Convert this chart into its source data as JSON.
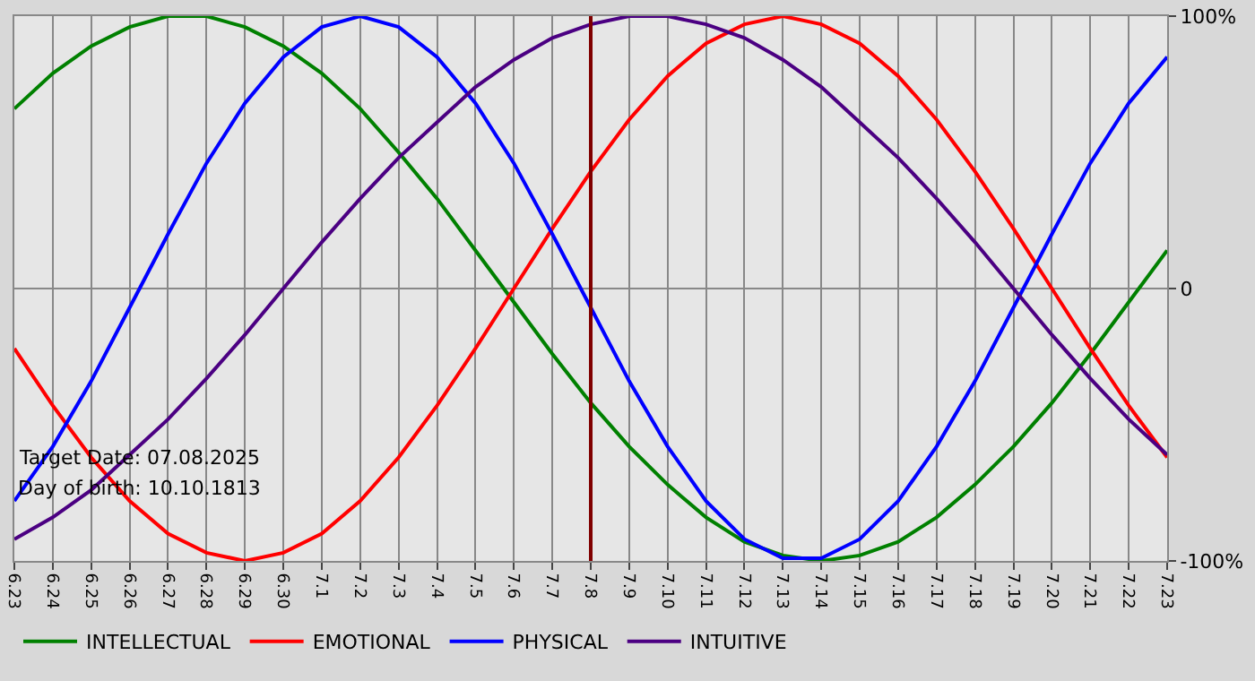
{
  "chart_data": {
    "type": "line",
    "categories": [
      "6.23",
      "6.24",
      "6.25",
      "6.26",
      "6.27",
      "6.28",
      "6.29",
      "6.30",
      "7.1",
      "7.2",
      "7.3",
      "7.4",
      "7.5",
      "7.6",
      "7.7",
      "7.8",
      "7.9",
      "7.10",
      "7.11",
      "7.12",
      "7.13",
      "7.14",
      "7.15",
      "7.16",
      "7.17",
      "7.18",
      "7.19",
      "7.20",
      "7.21",
      "7.22",
      "7.23"
    ],
    "series": [
      {
        "name": "INTELLECTUAL",
        "color": "#008000",
        "values": [
          66,
          79,
          89,
          96,
          100,
          100,
          96,
          89,
          79,
          66,
          50,
          33,
          14,
          -5,
          -24,
          -42,
          -58,
          -72,
          -84,
          -93,
          -98,
          -100,
          -98,
          -93,
          -84,
          -72,
          -58,
          -42,
          -24,
          -5,
          14
        ]
      },
      {
        "name": "EMOTIONAL",
        "color": "#ff0000",
        "values": [
          -22,
          -43,
          -62,
          -78,
          -90,
          -97,
          -100,
          -97,
          -90,
          -78,
          -62,
          -43,
          -22,
          0,
          22,
          43,
          62,
          78,
          90,
          97,
          100,
          97,
          90,
          78,
          62,
          43,
          22,
          0,
          -22,
          -43,
          -62
        ]
      },
      {
        "name": "PHYSICAL",
        "color": "#0000ff",
        "values": [
          -78,
          -58,
          -34,
          -7,
          20,
          46,
          68,
          85,
          96,
          100,
          96,
          85,
          68,
          46,
          20,
          -7,
          -34,
          -58,
          -78,
          -92,
          -99,
          -99,
          -92,
          -78,
          -58,
          -34,
          -7,
          20,
          46,
          68,
          85
        ]
      },
      {
        "name": "INTUITIVE",
        "color": "#4b0082",
        "values": [
          -92,
          -84,
          -74,
          -61,
          -48,
          -33,
          -17,
          0,
          17,
          33,
          48,
          61,
          74,
          84,
          92,
          97,
          100,
          100,
          97,
          92,
          84,
          74,
          61,
          48,
          33,
          17,
          0,
          -17,
          -33,
          -48,
          -61
        ]
      }
    ],
    "ylim": [
      -100,
      100
    ],
    "yticks": [
      {
        "value": -100,
        "label": "-100%"
      },
      0,
      {
        "value": 100,
        "label": "100%"
      }
    ],
    "grid": true,
    "legend": "bottom left",
    "ref_lines": [
      {
        "axis": "x",
        "value": "7.8",
        "color": "#800000"
      }
    ],
    "annotations": [
      "Target Date: 07.08.2025",
      "Day of birth: 10.10.1813"
    ]
  }
}
